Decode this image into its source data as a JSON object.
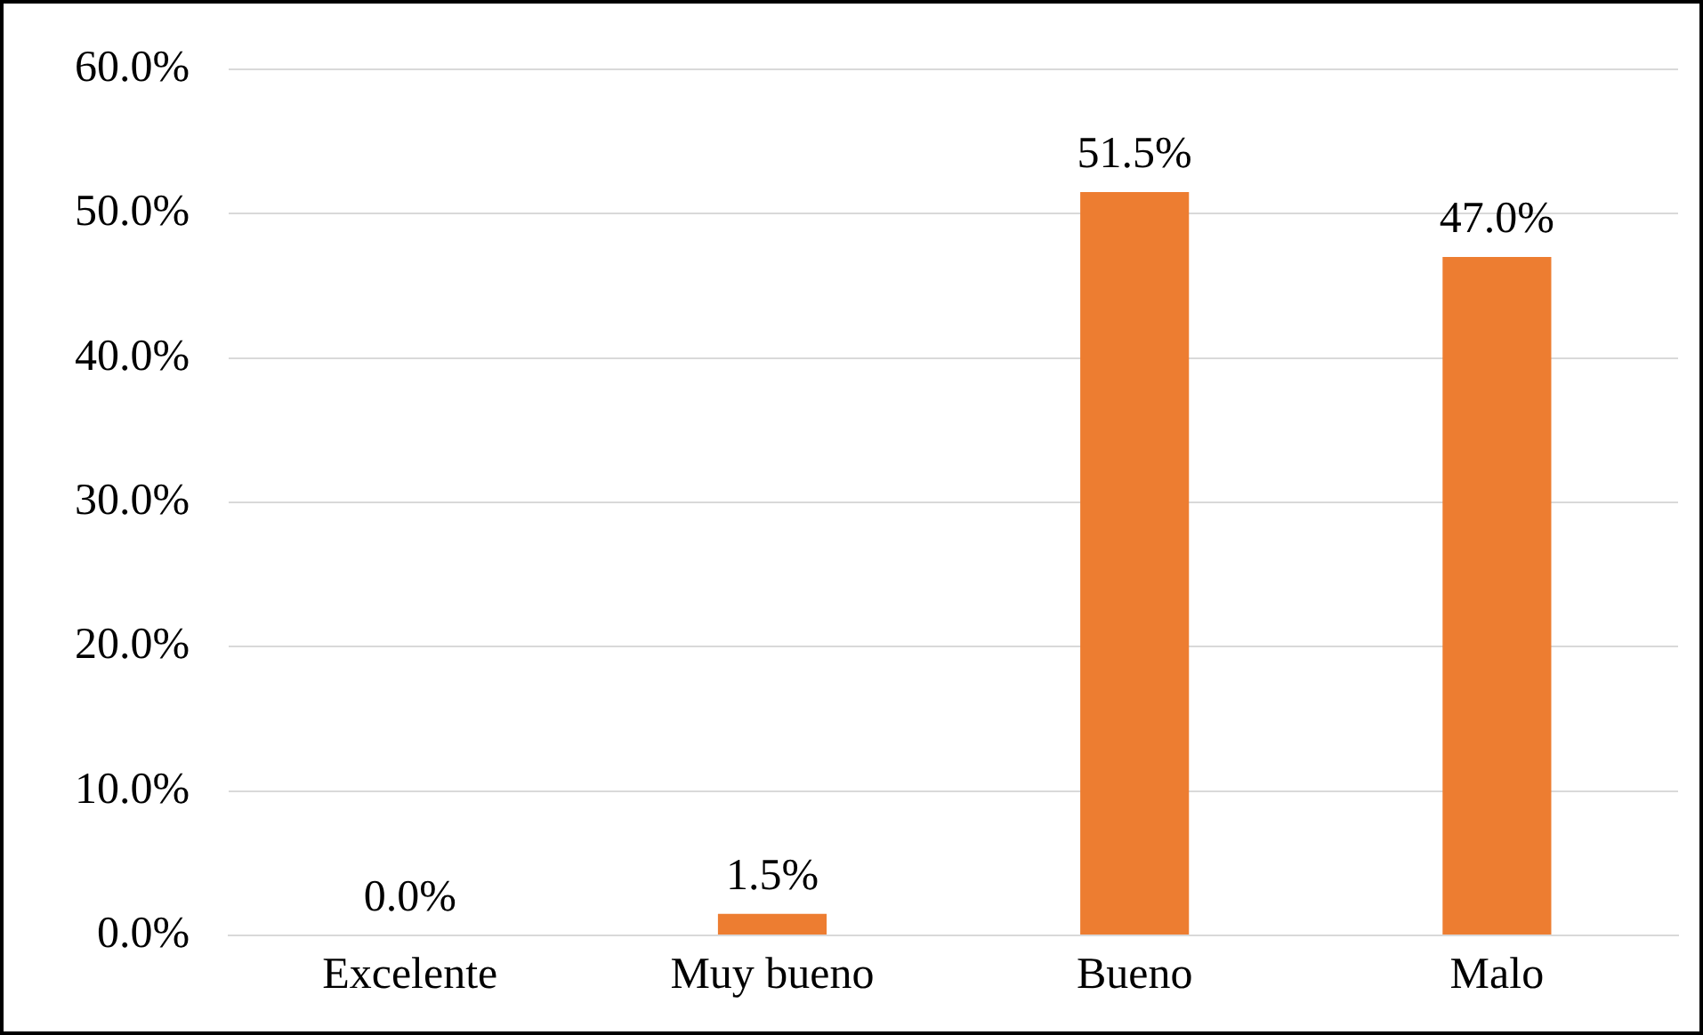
{
  "chart_data": {
    "type": "bar",
    "categories": [
      "Excelente",
      "Muy bueno",
      "Bueno",
      "Malo"
    ],
    "values": [
      0,
      1.5,
      51.5,
      47.0
    ],
    "color": "#ed7d31",
    "value_labels": [
      "0.0%",
      "1.5%",
      "51.5%",
      "47.0%"
    ],
    "ylim": [
      0,
      60
    ],
    "yticks": [
      {
        "value": 0,
        "label": "0.0%"
      },
      {
        "value": 10,
        "label": "10.0%"
      },
      {
        "value": 20,
        "label": "20.0%"
      },
      {
        "value": 30,
        "label": "30.0%"
      },
      {
        "value": 40,
        "label": "40.0%"
      },
      {
        "value": 50,
        "label": "50.0%"
      },
      {
        "value": 60,
        "label": "60.0%"
      }
    ],
    "grid": "y",
    "legend": false
  }
}
